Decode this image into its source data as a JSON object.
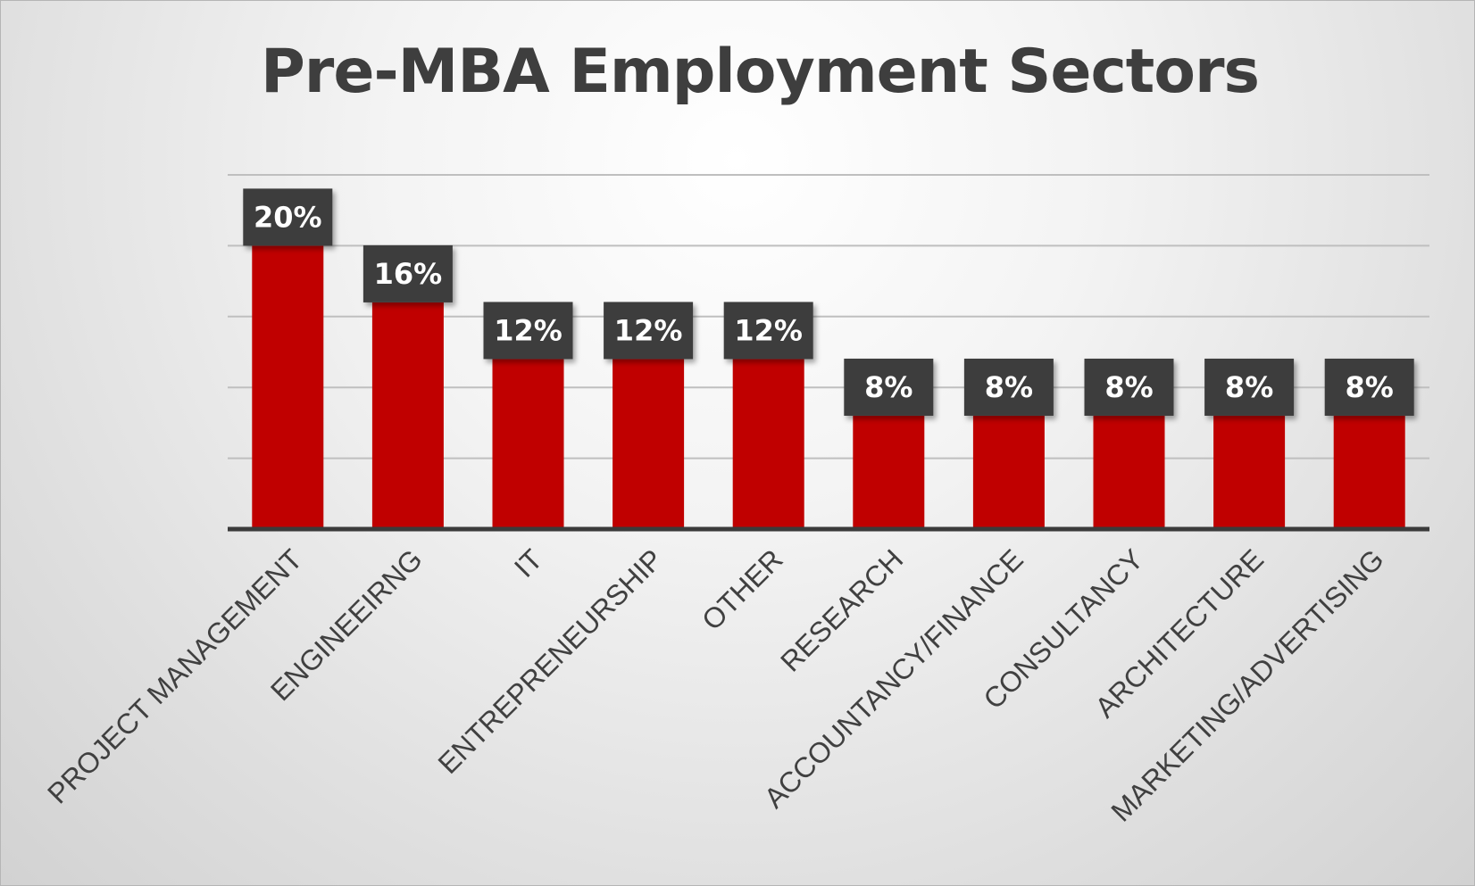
{
  "chart_data": {
    "type": "bar",
    "title": "Pre-MBA Employment Sectors",
    "xlabel": "",
    "ylabel": "",
    "categories": [
      "PROJECT MANAGEMENT",
      "ENGINEEIRNG",
      "IT",
      "ENTREPRENEURSHIP",
      "OTHER",
      "RESEARCH",
      "ACCOUNTANCY/FINANCE",
      "CONSULTANCY",
      "ARCHITECTURE",
      "MARKETING/ADVERTISING"
    ],
    "values": [
      20,
      16,
      12,
      12,
      12,
      8,
      8,
      8,
      8,
      8
    ],
    "value_labels": [
      "20%",
      "16%",
      "12%",
      "12%",
      "12%",
      "8%",
      "8%",
      "8%",
      "8%",
      "8%"
    ],
    "ylim": [
      0,
      25
    ],
    "grid": true,
    "legend": "none",
    "colors": {
      "bar": "#c00000",
      "label_box": "#3d3d3d",
      "gridline": "#bfbfbf",
      "axis": "#3b3b3b",
      "title": "#3e3e3e"
    }
  }
}
